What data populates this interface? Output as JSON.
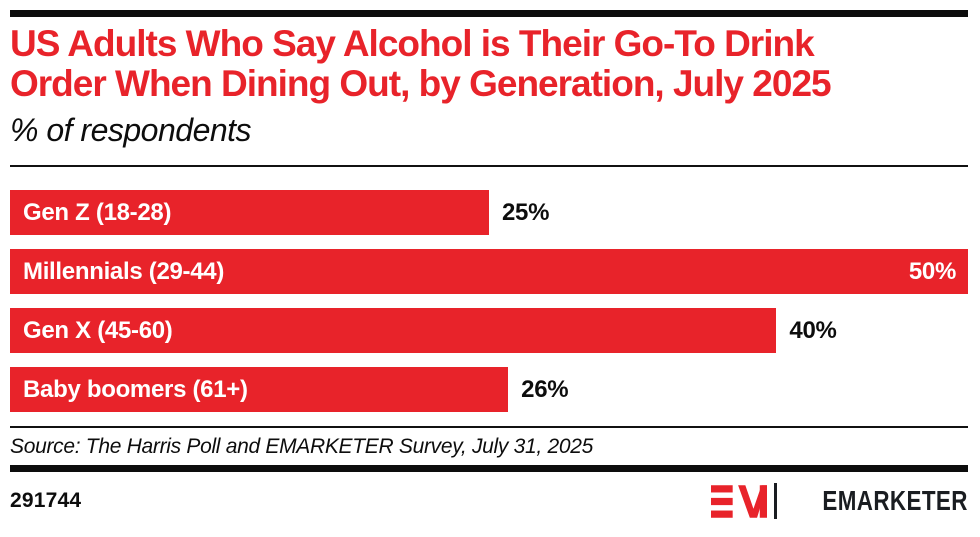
{
  "colors": {
    "accent_red": "#e8232a",
    "text_black": "#0d0d0d",
    "logo_black": "#1a1d21",
    "bar_text_white": "#ffffff"
  },
  "header": {
    "title_lines": [
      "US Adults Who Say Alcohol is Their Go-To Drink",
      "Order When Dining Out, by Generation, July 2025"
    ],
    "subtitle": "% of respondents"
  },
  "chart_data": {
    "type": "bar",
    "orientation": "horizontal",
    "title": "US Adults Who Say Alcohol is Their Go-To Drink Order When Dining Out, by Generation, July 2025",
    "subtitle": "% of respondents",
    "categories": [
      "Gen Z (18-28)",
      "Millennials (29-44)",
      "Gen X (45-60)",
      "Baby boomers (61+)"
    ],
    "values": [
      25,
      50,
      40,
      26
    ],
    "value_labels": [
      "25%",
      "50%",
      "40%",
      "26%"
    ],
    "unit": "%",
    "xlim": [
      0,
      50
    ],
    "grid": false,
    "legend": "none",
    "bar_color": "#e8232a",
    "value_label_position_rule": "outside bar in black, except max value (50%) shown inside bar right-aligned in white"
  },
  "source": {
    "text": "Source: The Harris Poll and EMARKETER Survey, July 31, 2025"
  },
  "footer": {
    "chart_id": "291744",
    "brand_wordmark": "EMARKETER",
    "logo_mark": "em-monogram-icon"
  }
}
